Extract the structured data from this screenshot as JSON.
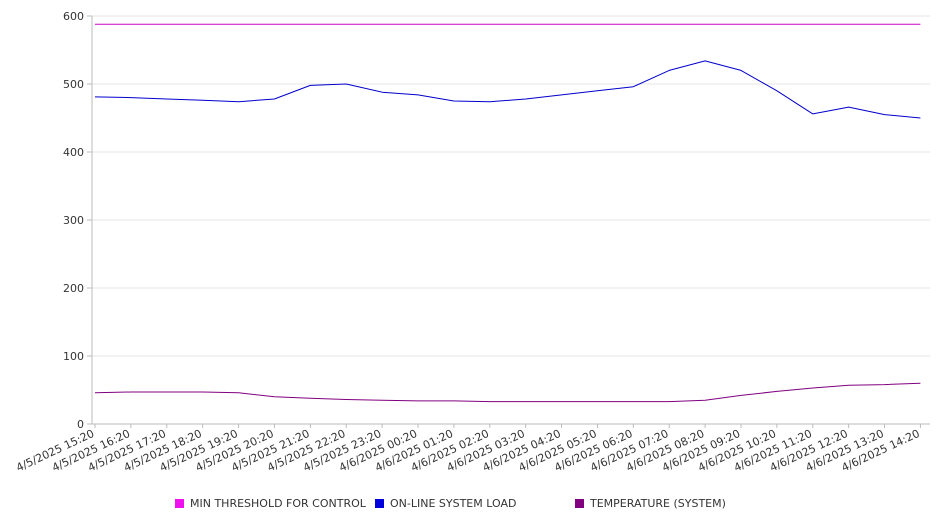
{
  "chart_data": {
    "type": "line",
    "title": "",
    "xlabel": "",
    "ylabel": "",
    "ylim": [
      0,
      600
    ],
    "y_ticks": [
      0,
      100,
      200,
      300,
      400,
      500,
      600
    ],
    "grid": true,
    "legend_position": "bottom",
    "x_labels": [
      "4/5/2025 15:20",
      "4/5/2025 16:20",
      "4/5/2025 17:20",
      "4/5/2025 18:20",
      "4/5/2025 19:20",
      "4/5/2025 20:20",
      "4/5/2025 21:20",
      "4/5/2025 22:20",
      "4/5/2025 23:20",
      "4/6/2025 00:20",
      "4/6/2025 01:20",
      "4/6/2025 02:20",
      "4/6/2025 03:20",
      "4/6/2025 04:20",
      "4/6/2025 05:20",
      "4/6/2025 06:20",
      "4/6/2025 07:20",
      "4/6/2025 08:20",
      "4/6/2025 09:20",
      "4/6/2025 10:20",
      "4/6/2025 11:20",
      "4/6/2025 12:20",
      "4/6/2025 13:20",
      "4/6/2025 14:20"
    ],
    "series": [
      {
        "name": "MIN THRESHOLD FOR CONTROL",
        "color": "#cc00cc",
        "values": [
          588,
          588,
          588,
          588,
          588,
          588,
          588,
          588,
          588,
          588,
          588,
          588,
          588,
          588,
          588,
          588,
          588,
          588,
          588,
          588,
          588,
          588,
          588,
          588
        ]
      },
      {
        "name": "ON-LINE SYSTEM LOAD",
        "color": "#0000cc",
        "values": [
          481,
          480,
          478,
          476,
          474,
          478,
          498,
          500,
          488,
          484,
          475,
          474,
          478,
          484,
          490,
          496,
          520,
          534,
          520,
          490,
          456,
          466,
          455,
          450
        ]
      },
      {
        "name": "TEMPERATURE (SYSTEM)",
        "color": "#800080",
        "values": [
          46,
          47,
          47,
          47,
          46,
          40,
          38,
          36,
          35,
          34,
          34,
          33,
          33,
          33,
          33,
          33,
          33,
          35,
          42,
          48,
          53,
          57,
          58,
          60
        ]
      }
    ],
    "legend": [
      {
        "label": "MIN THRESHOLD FOR CONTROL",
        "color": "#ee11ee"
      },
      {
        "label": "ON-LINE SYSTEM LOAD",
        "color": "#0000dd"
      },
      {
        "label": "TEMPERATURE (SYSTEM)",
        "color": "#800080"
      }
    ]
  }
}
